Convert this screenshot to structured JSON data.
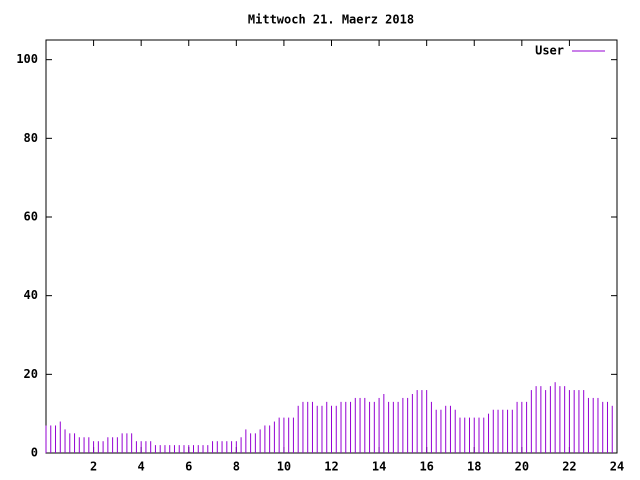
{
  "chart_data": {
    "type": "impulses",
    "title": "Mittwoch 21. Maerz 2018",
    "x": [
      0,
      0.2,
      0.4,
      0.6,
      0.8,
      1,
      1.2,
      1.4,
      1.6,
      1.8,
      2,
      2.2,
      2.4,
      2.6,
      2.8,
      3,
      3.2,
      3.4,
      3.6,
      3.8,
      4,
      4.2,
      4.4,
      4.6,
      4.8,
      5,
      5.2,
      5.4,
      5.6,
      5.8,
      6,
      6.2,
      6.4,
      6.6,
      6.8,
      7,
      7.2,
      7.4,
      7.6,
      7.8,
      8,
      8.2,
      8.4,
      8.6,
      8.8,
      9,
      9.2,
      9.4,
      9.6,
      9.8,
      10,
      10.2,
      10.4,
      10.6,
      10.8,
      11,
      11.2,
      11.4,
      11.6,
      11.8,
      12,
      12.2,
      12.4,
      12.6,
      12.8,
      13,
      13.2,
      13.4,
      13.6,
      13.8,
      14,
      14.2,
      14.4,
      14.6,
      14.8,
      15,
      15.2,
      15.4,
      15.6,
      15.8,
      16,
      16.2,
      16.4,
      16.6,
      16.8,
      17,
      17.2,
      17.4,
      17.6,
      17.8,
      18,
      18.2,
      18.4,
      18.6,
      18.8,
      19,
      19.2,
      19.4,
      19.6,
      19.8,
      20,
      20.2,
      20.4,
      20.6,
      20.8,
      21,
      21.2,
      21.4,
      21.6,
      21.8,
      22,
      22.2,
      22.4,
      22.6,
      22.8,
      23,
      23.2,
      23.4,
      23.6,
      23.8
    ],
    "series": [
      {
        "name": "User",
        "color": "#9400d3",
        "values": [
          7,
          7,
          7,
          8,
          6,
          5,
          5,
          4,
          4,
          4,
          3,
          3,
          3,
          4,
          4,
          4,
          5,
          5,
          5,
          3,
          3,
          3,
          3,
          2,
          2,
          2,
          2,
          2,
          2,
          2,
          2,
          2,
          2,
          2,
          2,
          3,
          3,
          3,
          3,
          3,
          3,
          4,
          6,
          5,
          5,
          6,
          7,
          7,
          8,
          9,
          9,
          9,
          9,
          12,
          13,
          13,
          13,
          12,
          12,
          13,
          12,
          12,
          13,
          13,
          13,
          14,
          14,
          14,
          13,
          13,
          14,
          15,
          13,
          13,
          13,
          14,
          14,
          15,
          16,
          16,
          16,
          13,
          11,
          11,
          12,
          12,
          11,
          9,
          9,
          9,
          9,
          9,
          9,
          10,
          11,
          11,
          11,
          11,
          11,
          13,
          13,
          13,
          16,
          17,
          17,
          16,
          17,
          18,
          17,
          17,
          16,
          16,
          16,
          16,
          14,
          14,
          14,
          13,
          13,
          12
        ]
      }
    ],
    "xlim": [
      0,
      24
    ],
    "xticks": [
      2,
      4,
      6,
      8,
      10,
      12,
      14,
      16,
      18,
      20,
      22,
      24
    ],
    "ylim": [
      0,
      105
    ],
    "yticks": [
      0,
      20,
      40,
      60,
      80,
      100
    ],
    "legend": "top-right"
  }
}
